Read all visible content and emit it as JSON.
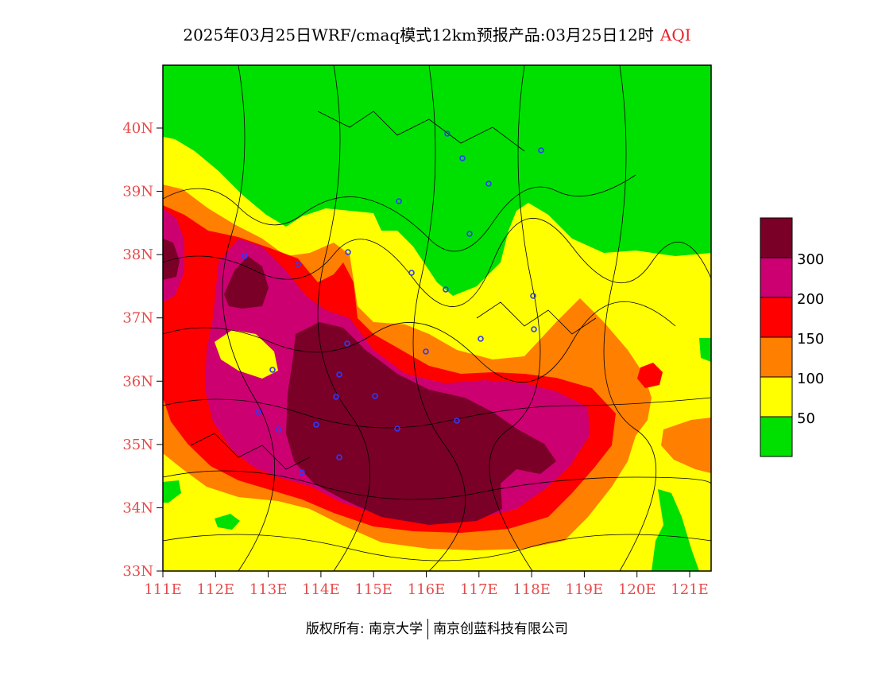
{
  "title": {
    "main": "2025年03月25日WRF/cmaq模式12km预报产品:03月25日12时",
    "variable": "AQI"
  },
  "axes": {
    "lat_labels": [
      "33N",
      "34N",
      "35N",
      "36N",
      "37N",
      "38N",
      "39N",
      "40N"
    ],
    "lon_labels": [
      "111E",
      "112E",
      "113E",
      "114E",
      "115E",
      "116E",
      "117E",
      "118E",
      "119E",
      "120E",
      "121E"
    ],
    "label_color": "#e84a4a"
  },
  "legend": {
    "levels": [
      {
        "label": "300",
        "color": "#7a0028"
      },
      {
        "label": "200",
        "color": "#cc0070"
      },
      {
        "label": "150",
        "color": "#ff0000"
      },
      {
        "label": "100",
        "color": "#ff7f00"
      },
      {
        "label": "50",
        "color": "#ffff00"
      },
      {
        "label": "",
        "color": "#00e000"
      }
    ]
  },
  "footer": {
    "copyright": "版权所有: 南京大学",
    "company": "南京创蓝科技有限公司"
  }
}
